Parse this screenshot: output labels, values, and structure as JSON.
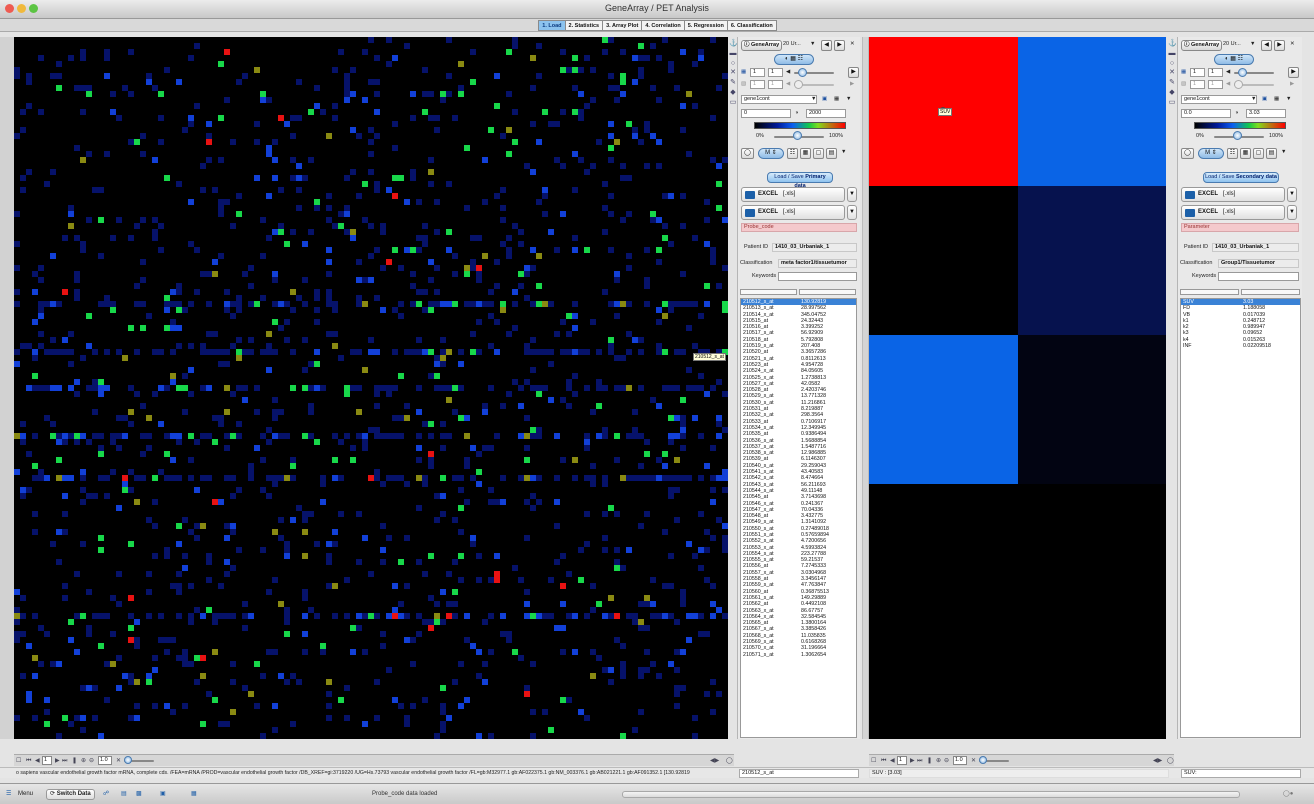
{
  "app": {
    "title": "GeneArray / PET Analysis"
  },
  "tabs": [
    {
      "label": "1. Load",
      "active": true
    },
    {
      "label": "2. Statistics"
    },
    {
      "label": "3. Array Plot"
    },
    {
      "label": "4. Correlation"
    },
    {
      "label": "5. Regression"
    },
    {
      "label": "6. Classification"
    }
  ],
  "heatmap_primary": {
    "tooltip": "210512_s_at",
    "description": "Dense gene-expression heatmap; mostly black with scattered dark-blue, bright-blue, green, olive and red cells; brighter horizontal streaks near rows 300, 350, 400, 440 and 580.",
    "colors": {
      "background": "#000000",
      "low": "#06126a",
      "mid": "#1240d8",
      "high_green": "#18d84a",
      "olive": "#8a8a12",
      "red": "#e81212"
    }
  },
  "nav_primary": {
    "page": "1",
    "zoom": "1.0"
  },
  "panel_primary": {
    "source": "GeneArray",
    "series": "20 Ur...",
    "row_field": "1",
    "row_field2": "1",
    "col_field": "1",
    "col_field2": "1",
    "dataset": "gene1cont",
    "min": "0",
    "max": "2000",
    "pct_min": "0%",
    "pct_max": "100%",
    "mode": "M",
    "load_button": "Load / Save ",
    "load_button_bold": "Primary data",
    "excel1": "EXCEL",
    "excel1_ext": "[.xls]",
    "excel2": "EXCEL",
    "excel2_ext": "[.xls]",
    "field_name": "Probe_code",
    "patient_label": "Patient ID",
    "patient_value": "1410_03_Urbaniak_1",
    "class_label": "Classification",
    "class_value": "meta factor1/tissuetumor",
    "keywords_label": "Keywords",
    "list": [
      [
        "210512_s_at",
        "130.92819"
      ],
      [
        "210513_s_at",
        "28.997562"
      ],
      [
        "210514_x_at",
        "345.04752"
      ],
      [
        "210515_at",
        "24.32443"
      ],
      [
        "210516_at",
        "3.399252"
      ],
      [
        "210517_s_at",
        "56.92909"
      ],
      [
        "210518_at",
        "5.792808"
      ],
      [
        "210519_s_at",
        "207.408"
      ],
      [
        "210520_at",
        "3.3657286"
      ],
      [
        "210521_s_at",
        "0.8112613"
      ],
      [
        "210523_at",
        "4.954728"
      ],
      [
        "210524_x_at",
        "84.05605"
      ],
      [
        "210525_x_at",
        "1.2738813"
      ],
      [
        "210527_x_at",
        "42.0582"
      ],
      [
        "210528_at",
        "2.4203746"
      ],
      [
        "210529_s_at",
        "13.771328"
      ],
      [
        "210530_s_at",
        "11.216861"
      ],
      [
        "210531_at",
        "8.219887"
      ],
      [
        "210532_s_at",
        "298.3564"
      ],
      [
        "210533_at",
        "0.7106917"
      ],
      [
        "210534_s_at",
        "12.349945"
      ],
      [
        "210535_at",
        "0.9386494"
      ],
      [
        "210536_s_at",
        "1.5688854"
      ],
      [
        "210537_s_at",
        "1.5487716"
      ],
      [
        "210538_s_at",
        "12.986885"
      ],
      [
        "210539_at",
        "6.1146307"
      ],
      [
        "210540_s_at",
        "29.259043"
      ],
      [
        "210541_s_at",
        "43.40583"
      ],
      [
        "210542_s_at",
        "8.474664"
      ],
      [
        "210543_s_at",
        "56.211693"
      ],
      [
        "210544_s_at",
        "49.11148"
      ],
      [
        "210545_at",
        "3.7143698"
      ],
      [
        "210546_x_at",
        "0.241367"
      ],
      [
        "210547_x_at",
        "70.04336"
      ],
      [
        "210548_at",
        "3.432775"
      ],
      [
        "210549_s_at",
        "1.3141092"
      ],
      [
        "210550_s_at",
        "0.27489018"
      ],
      [
        "210551_s_at",
        "0.57659894"
      ],
      [
        "210552_s_at",
        "4.7200656"
      ],
      [
        "210553_x_at",
        "4.5993824"
      ],
      [
        "210554_s_at",
        "223.27788"
      ],
      [
        "210555_s_at",
        "59.21537"
      ],
      [
        "210556_at",
        "7.2745333"
      ],
      [
        "210557_x_at",
        "3.0304968"
      ],
      [
        "210558_at",
        "3.3456147"
      ],
      [
        "210559_s_at",
        "47.763847"
      ],
      [
        "210560_at",
        "0.36875513"
      ],
      [
        "210561_s_at",
        "149.29889"
      ],
      [
        "210562_at",
        "0.4492108"
      ],
      [
        "210563_x_at",
        "86.67757"
      ],
      [
        "210564_x_at",
        "32.584545"
      ],
      [
        "210565_at",
        "1.3800164"
      ],
      [
        "210567_s_at",
        "3.3858426"
      ],
      [
        "210568_s_at",
        "11.035835"
      ],
      [
        "210569_s_at",
        "0.6168268"
      ],
      [
        "210570_x_at",
        "31.196664"
      ],
      [
        "210571_s_at",
        "1.3062654"
      ]
    ]
  },
  "heatmap_secondary": {
    "label": "SUV",
    "cells": [
      {
        "col": 0,
        "row": 0,
        "color": "#ff0000"
      },
      {
        "col": 1,
        "row": 0,
        "color": "#0a64e6"
      },
      {
        "col": 0,
        "row": 1,
        "color": "#000000"
      },
      {
        "col": 1,
        "row": 1,
        "color": "#06124e"
      },
      {
        "col": 0,
        "row": 2,
        "color": "#0a64e6"
      },
      {
        "col": 1,
        "row": 2,
        "color": "#020412"
      },
      {
        "col": 0,
        "row": 3,
        "color": "#000000"
      },
      {
        "col": 1,
        "row": 3,
        "color": "#000000"
      }
    ]
  },
  "nav_secondary": {
    "page": "1",
    "zoom": "1.0"
  },
  "panel_secondary": {
    "source": "GeneArray",
    "series": "20 Ur...",
    "row_field": "1",
    "row_field2": "1",
    "col_field": "1",
    "col_field2": "1",
    "dataset": "gene1cont",
    "min": "0.0",
    "max": "3.03",
    "pct_min": "0%",
    "pct_max": "100%",
    "mode": "M",
    "load_button": "Load / Save ",
    "load_button_bold": "Secondary data",
    "excel1": "EXCEL",
    "excel1_ext": "[.xls]",
    "excel2": "EXCEL",
    "excel2_ext": "[.xls]",
    "field_name": "Parameter",
    "patient_label": "Patient ID",
    "patient_value": "1410_03_Urbaniak_1",
    "class_label": "Classification",
    "class_value": "Group1/Tissuetumor",
    "keywords_label": "Keywords",
    "list": [
      [
        "SUV",
        "3.03"
      ],
      [
        "FD",
        "1.188058"
      ],
      [
        "VB",
        "0.017039"
      ],
      [
        "k1",
        "0.248712"
      ],
      [
        "k2",
        "0.989947"
      ],
      [
        "k3",
        "0.09652"
      ],
      [
        "k4",
        "0.015263"
      ],
      [
        "INF",
        "0.02209518"
      ]
    ]
  },
  "status": {
    "text": "o sapiens vascular endothelial growth factor mRNA, complete cds. /FEA=mRNA /PROD=vascular endothelial growth factor /DB_XREF=gi:3719220 /UG=Hs.73793 vascular endothelial growth factor /FL=gb:M32977.1 gb:AF022375.1 gb:NM_003376.1 gb:AB021221.1 gb:AF091352.1 [130.92819",
    "probe": "210512_s_at",
    "suv": "SUV : [3.03]",
    "suv_short": "SUV:"
  },
  "bottom": {
    "menu": "Menu",
    "switch": "Switch Data",
    "message": "Probe_code data loaded"
  }
}
